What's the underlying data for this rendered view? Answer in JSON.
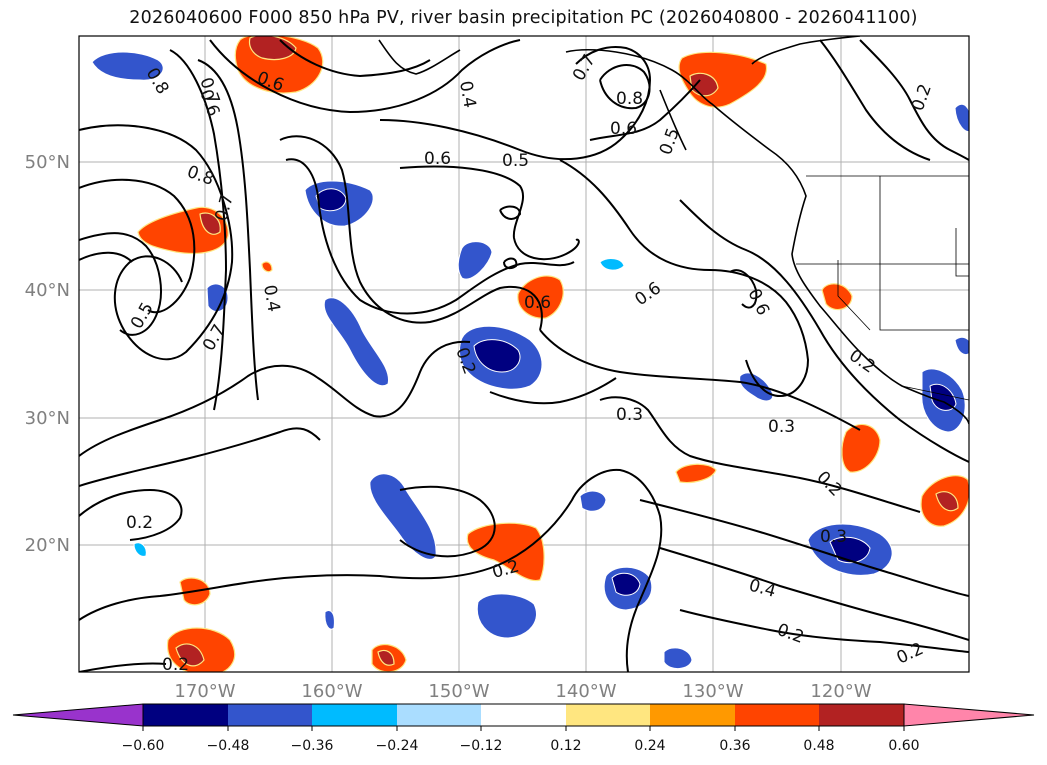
{
  "title": "2026040600 F000 850 hPa PV, river basin precipitation PC (2026040800 - 2026041100)",
  "map": {
    "lat_labels": [
      "50°N",
      "40°N",
      "30°N",
      "20°N"
    ],
    "lon_labels": [
      "170°W",
      "160°W",
      "150°W",
      "140°W",
      "130°W",
      "120°W"
    ],
    "contour_labels": [
      "0.8",
      "0.6",
      "0.7",
      "0.6",
      "0.4",
      "0.7",
      "0.8",
      "0.6",
      "0.5",
      "0.6",
      "0.5",
      "0.8",
      "0.7",
      "0.5",
      "0.4",
      "0.7",
      "0.6",
      "0.6",
      "0.6",
      "0.2",
      "0.3",
      "0.3",
      "0.2",
      "0.2",
      "0.3",
      "0.2",
      "0.4",
      "0.2",
      "0.2",
      "0.2",
      "0.2",
      "0.2"
    ]
  },
  "colorbar": {
    "ticks": [
      "−0.60",
      "−0.48",
      "−0.36",
      "−0.24",
      "−0.12",
      "0.12",
      "0.24",
      "0.36",
      "0.48",
      "0.60"
    ],
    "colors": [
      "#9933cc",
      "#000080",
      "#3355cc",
      "#00bbff",
      "#aaddff",
      "#ffffff",
      "#ffe680",
      "#ff9900",
      "#ff4400",
      "#b22222",
      "#ff85aa"
    ]
  }
}
